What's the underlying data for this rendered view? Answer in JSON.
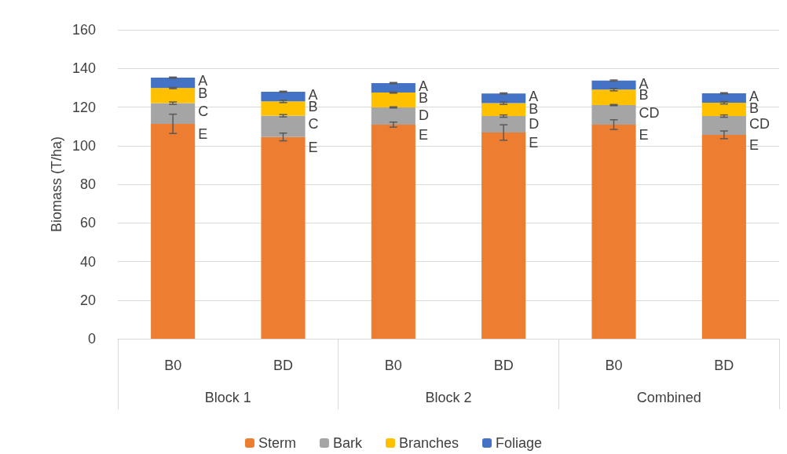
{
  "chart_data": {
    "type": "bar",
    "stacked": true,
    "ylabel": "Biomass (T/ha)",
    "categories": [
      "B0",
      "BD",
      "B0",
      "BD",
      "B0",
      "BD"
    ],
    "series": [
      {
        "name": "Sterm",
        "color": "#ed7d31",
        "values": [
          111.3,
          104.5,
          110.9,
          106.8,
          110.9,
          105.6
        ],
        "errors": [
          5,
          2,
          1.3,
          4,
          2.5,
          2
        ]
      },
      {
        "name": "Bark",
        "color": "#a5a5a5",
        "values": [
          10.7,
          11.0,
          8.9,
          8.5,
          10.1,
          9.7
        ],
        "errors": [
          0.6,
          0.6,
          0.3,
          0.6,
          0.3,
          0.6
        ]
      },
      {
        "name": "Branches",
        "color": "#ffc000",
        "values": [
          7.8,
          7.4,
          7.7,
          6.7,
          8.0,
          6.9
        ],
        "errors": [
          0.3,
          0.6,
          0.3,
          0.6,
          0.6,
          0.6
        ]
      },
      {
        "name": "Foliage",
        "color": "#4472c4",
        "values": [
          5.4,
          5.0,
          4.9,
          5.0,
          4.7,
          4.9
        ],
        "errors": [
          0.3,
          0.3,
          0.3,
          0.3,
          0.3,
          0.3
        ]
      }
    ],
    "ylim": [
      0,
      160
    ],
    "yticks": [
      0,
      20,
      40,
      60,
      80,
      100,
      120,
      140,
      160
    ],
    "grid": "y",
    "legend": "bottom",
    "annotations": [
      "Block 1",
      "Block 2",
      "Combined",
      "A",
      "B",
      "C",
      "E",
      "A",
      "B",
      "C",
      "E",
      "A",
      "B",
      "D",
      "E",
      "A",
      "B",
      "D",
      "E",
      "A",
      "B",
      "CD",
      "E",
      "A",
      "B",
      "CD",
      "E"
    ]
  }
}
